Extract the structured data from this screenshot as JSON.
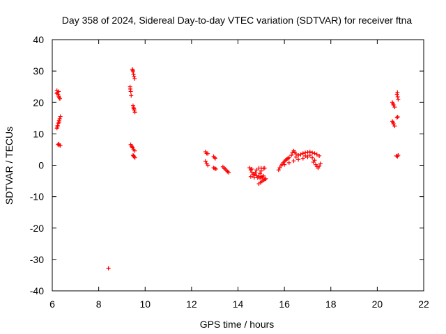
{
  "chart_data": {
    "type": "scatter",
    "title": "Day 358 of 2024, Sidereal Day-to-day VTEC variation (SDTVAR) for receiver ftna",
    "xlabel": "GPS time / hours",
    "ylabel": "SDTVAR / TECUs",
    "xlim": [
      6,
      22
    ],
    "ylim": [
      -40,
      40
    ],
    "xticks": [
      6,
      8,
      10,
      12,
      14,
      16,
      18,
      20,
      22
    ],
    "yticks": [
      -40,
      -30,
      -20,
      -10,
      0,
      10,
      20,
      30,
      40
    ],
    "grid": false,
    "marker": "+",
    "series": [
      {
        "name": "SDTVAR",
        "color": "#ff0000",
        "points": [
          [
            6.2,
            23.8
          ],
          [
            6.22,
            23.2
          ],
          [
            6.25,
            22.6
          ],
          [
            6.28,
            22.0
          ],
          [
            6.3,
            21.5
          ],
          [
            6.33,
            21.2
          ],
          [
            6.2,
            22.9
          ],
          [
            6.27,
            23.5
          ],
          [
            6.2,
            11.8
          ],
          [
            6.23,
            12.6
          ],
          [
            6.26,
            13.4
          ],
          [
            6.29,
            14.2
          ],
          [
            6.32,
            14.8
          ],
          [
            6.35,
            15.5
          ],
          [
            6.22,
            12.2
          ],
          [
            6.3,
            13.8
          ],
          [
            6.25,
            6.6
          ],
          [
            6.3,
            6.4
          ],
          [
            6.35,
            6.3
          ],
          [
            6.28,
            6.8
          ],
          [
            8.42,
            -32.8
          ],
          [
            9.35,
            25.0
          ],
          [
            9.38,
            23.5
          ],
          [
            9.4,
            22.2
          ],
          [
            9.36,
            24.3
          ],
          [
            9.45,
            30.6
          ],
          [
            9.48,
            29.8
          ],
          [
            9.5,
            29.0
          ],
          [
            9.52,
            28.3
          ],
          [
            9.55,
            27.6
          ],
          [
            9.47,
            30.2
          ],
          [
            9.48,
            19.0
          ],
          [
            9.5,
            18.3
          ],
          [
            9.53,
            17.6
          ],
          [
            9.56,
            16.9
          ],
          [
            9.52,
            18.0
          ],
          [
            9.38,
            6.6
          ],
          [
            9.42,
            6.1
          ],
          [
            9.46,
            5.6
          ],
          [
            9.5,
            5.1
          ],
          [
            9.55,
            4.6
          ],
          [
            9.44,
            5.8
          ],
          [
            9.48,
            3.2
          ],
          [
            9.52,
            2.8
          ],
          [
            9.56,
            2.4
          ],
          [
            9.5,
            3.0
          ],
          [
            12.6,
            4.3
          ],
          [
            12.65,
            3.8
          ],
          [
            12.7,
            3.7
          ],
          [
            12.6,
            1.3
          ],
          [
            12.65,
            0.6
          ],
          [
            12.7,
            0.0
          ],
          [
            12.95,
            2.8
          ],
          [
            13.0,
            2.4
          ],
          [
            13.02,
            2.2
          ],
          [
            12.95,
            -0.8
          ],
          [
            13.0,
            -1.0
          ],
          [
            13.05,
            -1.2
          ],
          [
            13.35,
            -0.5
          ],
          [
            13.4,
            -0.9
          ],
          [
            13.45,
            -1.2
          ],
          [
            13.5,
            -1.6
          ],
          [
            13.55,
            -2.0
          ],
          [
            13.6,
            -2.3
          ],
          [
            14.5,
            -0.8
          ],
          [
            14.55,
            -1.5
          ],
          [
            14.6,
            -2.2
          ],
          [
            14.7,
            -2.8
          ],
          [
            14.8,
            -3.3
          ],
          [
            14.9,
            -3.5
          ],
          [
            15.0,
            -3.6
          ],
          [
            15.1,
            -3.4
          ],
          [
            14.55,
            -3.6
          ],
          [
            14.7,
            -3.9
          ],
          [
            14.85,
            -4.0
          ],
          [
            14.95,
            -4.1
          ],
          [
            15.05,
            -3.8
          ],
          [
            14.6,
            -1.2
          ],
          [
            14.8,
            -1.5
          ],
          [
            15.0,
            -1.8
          ],
          [
            14.75,
            -2.4
          ],
          [
            14.95,
            -2.6
          ],
          [
            14.65,
            -3.0
          ],
          [
            14.9,
            -0.9
          ],
          [
            15.0,
            -0.9
          ],
          [
            15.1,
            -1.0
          ],
          [
            15.15,
            -0.9
          ],
          [
            14.9,
            -5.9
          ],
          [
            14.97,
            -5.5
          ],
          [
            15.03,
            -5.1
          ],
          [
            15.1,
            -4.8
          ],
          [
            15.15,
            -4.5
          ],
          [
            15.2,
            -4.3
          ],
          [
            15.75,
            -1.5
          ],
          [
            15.8,
            -0.8
          ],
          [
            15.85,
            -0.2
          ],
          [
            15.9,
            0.3
          ],
          [
            15.95,
            0.8
          ],
          [
            16.0,
            1.2
          ],
          [
            16.05,
            1.6
          ],
          [
            16.1,
            1.9
          ],
          [
            16.15,
            2.2
          ],
          [
            16.2,
            2.4
          ],
          [
            16.3,
            3.2
          ],
          [
            16.35,
            4.0
          ],
          [
            16.4,
            4.6
          ],
          [
            16.45,
            4.2
          ],
          [
            16.5,
            3.6
          ],
          [
            16.6,
            3.2
          ],
          [
            16.7,
            3.4
          ],
          [
            16.8,
            3.8
          ],
          [
            16.9,
            4.0
          ],
          [
            17.0,
            4.1
          ],
          [
            17.1,
            4.3
          ],
          [
            17.2,
            4.0
          ],
          [
            17.3,
            3.8
          ],
          [
            17.4,
            3.4
          ],
          [
            17.5,
            3.0
          ],
          [
            16.0,
            0.2
          ],
          [
            16.2,
            0.8
          ],
          [
            16.4,
            1.4
          ],
          [
            16.6,
            1.8
          ],
          [
            16.8,
            2.2
          ],
          [
            17.0,
            2.6
          ],
          [
            17.2,
            2.4
          ],
          [
            17.35,
            0.2
          ],
          [
            17.4,
            -0.4
          ],
          [
            17.45,
            -0.9
          ],
          [
            17.5,
            -0.3
          ],
          [
            17.55,
            0.5
          ],
          [
            17.25,
            1.0
          ],
          [
            16.5,
            2.6
          ],
          [
            16.9,
            3.0
          ],
          [
            17.1,
            3.2
          ],
          [
            17.3,
            1.6
          ],
          [
            20.65,
            20.0
          ],
          [
            20.7,
            19.2
          ],
          [
            20.75,
            18.5
          ],
          [
            20.68,
            19.6
          ],
          [
            20.65,
            14.0
          ],
          [
            20.7,
            13.2
          ],
          [
            20.75,
            12.5
          ],
          [
            20.68,
            13.6
          ],
          [
            20.85,
            22.6
          ],
          [
            20.88,
            21.8
          ],
          [
            20.9,
            21.0
          ],
          [
            20.87,
            23.2
          ],
          [
            20.85,
            15.2
          ],
          [
            20.88,
            15.4
          ],
          [
            20.82,
            3.0
          ],
          [
            20.87,
            2.8
          ],
          [
            20.9,
            3.2
          ]
        ]
      }
    ]
  }
}
